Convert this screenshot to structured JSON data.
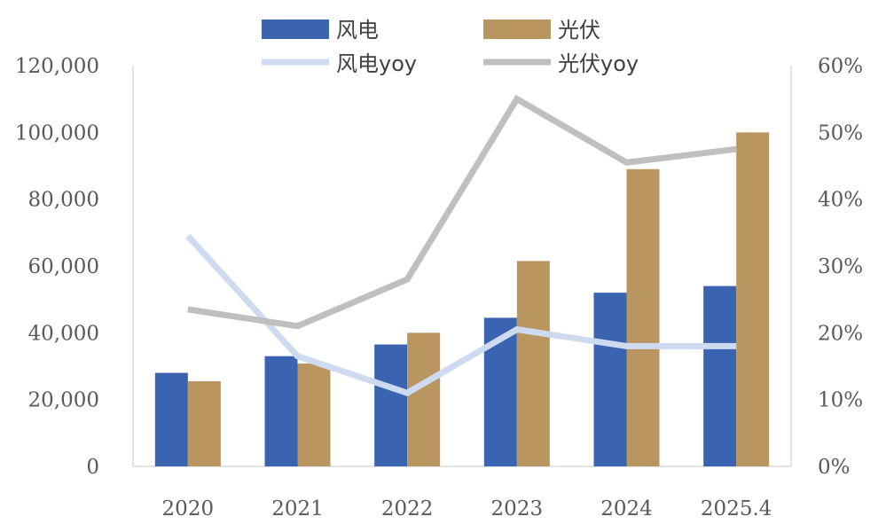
{
  "chart_data": {
    "type": "bar",
    "categories": [
      "2020",
      "2021",
      "2022",
      "2023",
      "2024",
      "2025.4"
    ],
    "series": [
      {
        "name": "风电",
        "type": "bar",
        "axis": "left",
        "color": "#3A64B0",
        "values": [
          28000,
          33000,
          36500,
          44500,
          52000,
          54000
        ]
      },
      {
        "name": "光伏",
        "type": "bar",
        "axis": "left",
        "color": "#B99560",
        "values": [
          25500,
          30800,
          40000,
          61500,
          89000,
          100000
        ]
      },
      {
        "name": "风电yoy",
        "type": "line",
        "axis": "right",
        "color": "#CDDAF0",
        "values": [
          0.345,
          0.165,
          0.11,
          0.205,
          0.18,
          0.18
        ]
      },
      {
        "name": "光伏yoy",
        "type": "line",
        "axis": "right",
        "color": "#BFBFBF",
        "values": [
          0.235,
          0.21,
          0.28,
          0.55,
          0.455,
          0.475
        ]
      }
    ],
    "y_left": {
      "min": 0,
      "max": 120000,
      "ticks": [
        "0",
        "20,000",
        "40,000",
        "60,000",
        "80,000",
        "100,000",
        "120,000"
      ]
    },
    "y_right": {
      "min": 0,
      "max": 0.6,
      "ticks": [
        "0%",
        "10%",
        "20%",
        "30%",
        "40%",
        "50%",
        "60%"
      ]
    },
    "legend_position": "top",
    "grid": false
  }
}
